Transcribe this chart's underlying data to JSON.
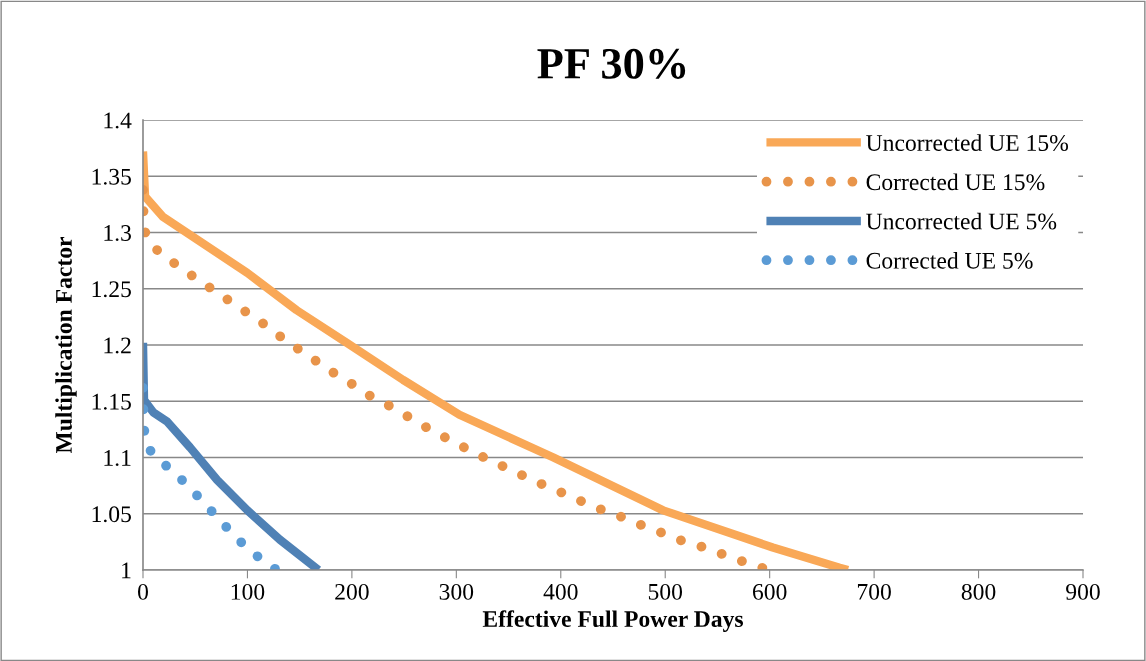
{
  "chart_data": {
    "type": "line",
    "title": "PF 30%",
    "xlabel": "Effective Full Power Days",
    "ylabel": "Multiplication Factor",
    "xlim": [
      0,
      900
    ],
    "xticks": [
      0,
      100,
      200,
      300,
      400,
      500,
      600,
      700,
      800,
      900
    ],
    "ylim": [
      1,
      1.4
    ],
    "yticks": [
      1,
      1.05,
      1.1,
      1.15,
      1.2,
      1.25,
      1.3,
      1.35,
      1.4
    ],
    "grid": "y",
    "legend": "top right",
    "marker": "none",
    "series": [
      {
        "name": "Uncorrected UE 15%",
        "color": "#f9a857",
        "line_style": "solid",
        "x": [
          0,
          2,
          19,
          100,
          147,
          195,
          249,
          303,
          393,
          498,
          603,
          667,
          675
        ],
        "values": [
          1.372,
          1.332,
          1.314,
          1.264,
          1.231,
          1.202,
          1.169,
          1.138,
          1.1,
          1.053,
          1.02,
          1.002,
          1.0
        ]
      },
      {
        "name": "Corrected UE 15%",
        "color": "#e8944a",
        "line_style": "dotted",
        "x": [
          0,
          0.5,
          1,
          10,
          25,
          40,
          56,
          72,
          88,
          104,
          120,
          135,
          151,
          167,
          183,
          199,
          215,
          232,
          249,
          265,
          281,
          299,
          316,
          333,
          350,
          368,
          385,
          403,
          420,
          438,
          456,
          474,
          492,
          509,
          528,
          546,
          564,
          582,
          600
        ],
        "values": [
          1.338,
          1.32,
          1.302,
          1.287,
          1.276,
          1.266,
          1.256,
          1.246,
          1.236,
          1.226,
          1.216,
          1.205,
          1.195,
          1.185,
          1.175,
          1.166,
          1.156,
          1.148,
          1.139,
          1.13,
          1.122,
          1.113,
          1.105,
          1.097,
          1.09,
          1.082,
          1.075,
          1.068,
          1.061,
          1.054,
          1.048,
          1.041,
          1.035,
          1.028,
          1.023,
          1.017,
          1.011,
          1.005,
          1.0
        ]
      },
      {
        "name": "Uncorrected UE 5%",
        "color": "#4f81b5",
        "line_style": "solid",
        "x": [
          0,
          1,
          10,
          23,
          45,
          71,
          100,
          131,
          168
        ],
        "values": [
          1.202,
          1.151,
          1.14,
          1.132,
          1.109,
          1.08,
          1.053,
          1.027,
          1.0
        ]
      },
      {
        "name": "Corrected UE 5%",
        "color": "#5b9bd5",
        "line_style": "dotted",
        "x": [
          0,
          0.5,
          1,
          5,
          18,
          33,
          46,
          59,
          72,
          85,
          99,
          114,
          128
        ],
        "values": [
          1.162,
          1.141,
          1.125,
          1.108,
          1.096,
          1.084,
          1.072,
          1.059,
          1.046,
          1.033,
          1.02,
          1.009,
          1.0
        ]
      }
    ]
  }
}
